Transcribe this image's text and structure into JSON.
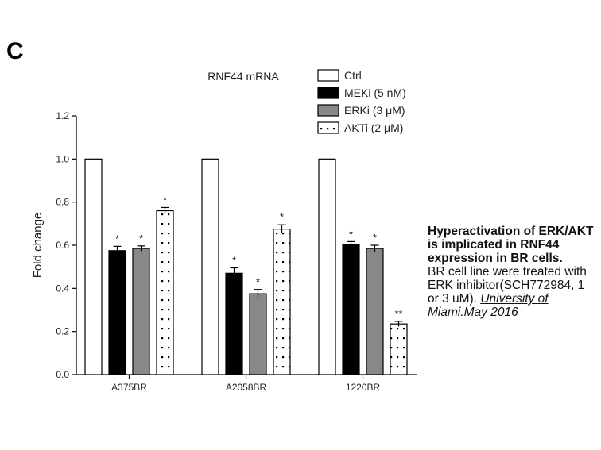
{
  "panel_letter": "C",
  "chart_data": {
    "type": "bar",
    "title": "RNF44 mRNA",
    "xlabel": "",
    "ylabel": "Fold change",
    "ylim": [
      0,
      1.2
    ],
    "yticks": [
      "0.0",
      "0.2",
      "0.4",
      "0.6",
      "0.8",
      "1.0",
      "1.2"
    ],
    "categories": [
      "A375BR",
      "A2058BR",
      "1220BR"
    ],
    "legend_position": "top-right",
    "grid": false,
    "series": [
      {
        "name": "Ctrl",
        "color": "#ffffff",
        "pattern": "none",
        "values": [
          1.0,
          1.0,
          1.0
        ],
        "errors": [
          0,
          0,
          0
        ],
        "significance": [
          "",
          "",
          ""
        ]
      },
      {
        "name": "MEKi (5 nM)",
        "color": "#000000",
        "pattern": "none",
        "values": [
          0.575,
          0.47,
          0.605
        ],
        "errors": [
          0.02,
          0.025,
          0.012
        ],
        "significance": [
          "*",
          "*",
          "*"
        ]
      },
      {
        "name": "ERKi (3 μM)",
        "color": "#888888",
        "pattern": "none",
        "values": [
          0.585,
          0.375,
          0.585
        ],
        "errors": [
          0.012,
          0.02,
          0.015
        ],
        "significance": [
          "*",
          "*",
          "*"
        ]
      },
      {
        "name": "AKTi (2 μM)",
        "color": "#ffffff",
        "pattern": "dots",
        "values": [
          0.76,
          0.675,
          0.235
        ],
        "errors": [
          0.015,
          0.02,
          0.012
        ],
        "significance": [
          "*",
          "*",
          "**"
        ]
      }
    ]
  },
  "caption": {
    "title": "Hyperactivation of ERK/AKT is implicated in RNF44 expression in BR cells.",
    "body": "BR cell line were treated with ERK inhibitor(SCH772984, 1 or 3 uM). ",
    "source": "University of Miami.May 2016"
  }
}
